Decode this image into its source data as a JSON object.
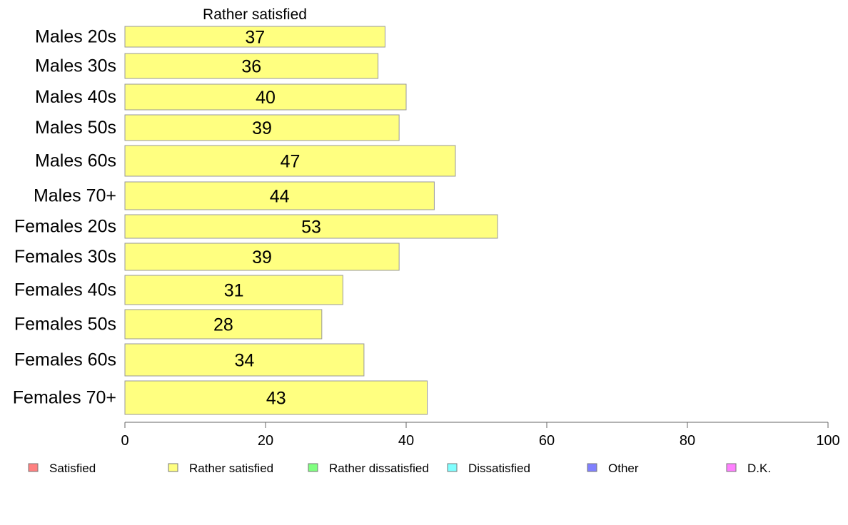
{
  "chart_data": {
    "type": "bar",
    "orientation": "horizontal",
    "title": "Rather satisfied",
    "categories": [
      "Males 20s",
      "Males 30s",
      "Males 40s",
      "Males 50s",
      "Males 60s",
      "Males 70+",
      "Females 20s",
      "Females 30s",
      "Females 40s",
      "Females 50s",
      "Females 60s",
      "Females 70+"
    ],
    "values": [
      37,
      36,
      40,
      39,
      47,
      44,
      53,
      39,
      31,
      28,
      34,
      43
    ],
    "value_labels": [
      "37",
      "36",
      "40",
      "39",
      "47",
      "44",
      "53",
      "39",
      "31",
      "28",
      "34",
      "43"
    ],
    "bar_color": "#ffff80",
    "xlim": [
      0,
      100
    ],
    "xticks": [
      0,
      20,
      40,
      60,
      80,
      100
    ],
    "xtick_labels": [
      "0",
      "20",
      "40",
      "60",
      "80",
      "100"
    ],
    "grid": false,
    "legend_position": "bottom",
    "legend": [
      {
        "label": "Satisfied",
        "color": "#ff8080"
      },
      {
        "label": "Rather satisfied",
        "color": "#ffff80"
      },
      {
        "label": "Rather dissatisfied",
        "color": "#80ff80"
      },
      {
        "label": "Dissatisfied",
        "color": "#80ffff"
      },
      {
        "label": "Other",
        "color": "#8080ff"
      },
      {
        "label": "D.K.",
        "color": "#ff80ff"
      }
    ]
  }
}
